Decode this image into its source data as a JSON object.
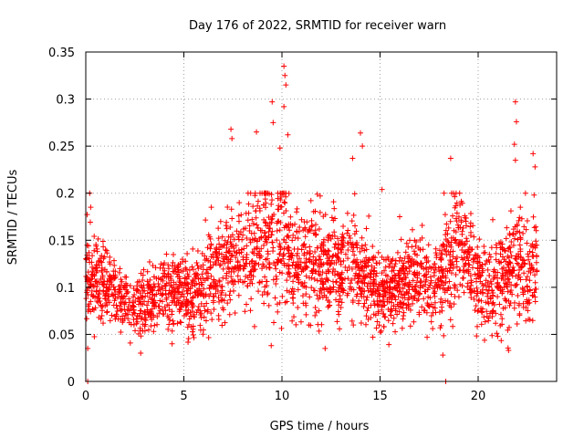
{
  "chart_data": {
    "type": "scatter",
    "title": "Day 176 of 2022, SRMTID for receiver warn",
    "xlabel": "GPS time / hours",
    "ylabel": "SRMTID / TECUs",
    "xlim": [
      0,
      24
    ],
    "ylim": [
      0,
      0.35
    ],
    "xticks": [
      0,
      5,
      10,
      15,
      20
    ],
    "xtick_labels": [
      "0",
      "5",
      "10",
      "15",
      "20"
    ],
    "yticks": [
      0,
      0.05,
      0.1,
      0.15,
      0.2,
      0.25,
      0.3,
      0.35
    ],
    "ytick_labels": [
      "0",
      "0.05",
      "0.1",
      "0.15",
      "0.2",
      "0.25",
      "0.3",
      "0.35"
    ],
    "grid": true,
    "marker": "+",
    "color": "#ff0000",
    "series": [
      {
        "name": "SRMTID",
        "profile_x": [
          0,
          0.5,
          1,
          1.5,
          2,
          2.5,
          3,
          3.5,
          4,
          4.5,
          5,
          5.5,
          6,
          6.5,
          7,
          7.5,
          8,
          8.5,
          9,
          9.5,
          10,
          10.5,
          11,
          11.5,
          12,
          12.5,
          13,
          13.5,
          14,
          14.5,
          15,
          15.5,
          16,
          16.5,
          17,
          17.5,
          18,
          18.5,
          19,
          19.5,
          20,
          20.5,
          21,
          21.5,
          22,
          22.5,
          23
        ],
        "profile_mean": [
          0.115,
          0.11,
          0.1,
          0.095,
          0.085,
          0.08,
          0.085,
          0.09,
          0.095,
          0.1,
          0.095,
          0.09,
          0.1,
          0.115,
          0.12,
          0.13,
          0.125,
          0.14,
          0.15,
          0.14,
          0.15,
          0.13,
          0.12,
          0.125,
          0.125,
          0.12,
          0.12,
          0.125,
          0.12,
          0.11,
          0.095,
          0.095,
          0.1,
          0.11,
          0.115,
          0.105,
          0.11,
          0.13,
          0.15,
          0.13,
          0.11,
          0.1,
          0.1,
          0.12,
          0.125,
          0.12,
          0.12
        ],
        "profile_spread": [
          0.03,
          0.03,
          0.025,
          0.02,
          0.02,
          0.02,
          0.02,
          0.025,
          0.025,
          0.025,
          0.025,
          0.025,
          0.03,
          0.03,
          0.035,
          0.035,
          0.035,
          0.04,
          0.045,
          0.04,
          0.045,
          0.04,
          0.035,
          0.035,
          0.035,
          0.035,
          0.035,
          0.035,
          0.035,
          0.03,
          0.025,
          0.025,
          0.025,
          0.03,
          0.03,
          0.03,
          0.035,
          0.04,
          0.04,
          0.035,
          0.03,
          0.03,
          0.03,
          0.035,
          0.035,
          0.035,
          0.035
        ],
        "point_count": 2600,
        "outliers": [
          {
            "x": 0.1,
            "y": 0.0
          },
          {
            "x": 0.2,
            "y": 0.2
          },
          {
            "x": 0.25,
            "y": 0.185
          },
          {
            "x": 0.1,
            "y": 0.035
          },
          {
            "x": 9.5,
            "y": 0.297
          },
          {
            "x": 9.55,
            "y": 0.275
          },
          {
            "x": 10.1,
            "y": 0.335
          },
          {
            "x": 10.15,
            "y": 0.325
          },
          {
            "x": 10.2,
            "y": 0.315
          },
          {
            "x": 10.1,
            "y": 0.292
          },
          {
            "x": 10.3,
            "y": 0.262
          },
          {
            "x": 9.9,
            "y": 0.248
          },
          {
            "x": 7.4,
            "y": 0.268
          },
          {
            "x": 7.45,
            "y": 0.258
          },
          {
            "x": 8.7,
            "y": 0.265
          },
          {
            "x": 14.0,
            "y": 0.264
          },
          {
            "x": 14.1,
            "y": 0.25
          },
          {
            "x": 13.6,
            "y": 0.237
          },
          {
            "x": 15.1,
            "y": 0.204
          },
          {
            "x": 18.6,
            "y": 0.237
          },
          {
            "x": 18.35,
            "y": 0.0
          },
          {
            "x": 18.2,
            "y": 0.028
          },
          {
            "x": 21.9,
            "y": 0.297
          },
          {
            "x": 21.95,
            "y": 0.276
          },
          {
            "x": 21.85,
            "y": 0.252
          },
          {
            "x": 21.9,
            "y": 0.235
          },
          {
            "x": 22.8,
            "y": 0.242
          },
          {
            "x": 22.9,
            "y": 0.228
          },
          {
            "x": 22.85,
            "y": 0.198
          },
          {
            "x": 2.8,
            "y": 0.03
          },
          {
            "x": 4.4,
            "y": 0.04
          },
          {
            "x": 12.2,
            "y": 0.035
          },
          {
            "x": 21.0,
            "y": 0.048
          },
          {
            "x": 21.55,
            "y": 0.033
          },
          {
            "x": 6.4,
            "y": 0.185
          },
          {
            "x": 16.0,
            "y": 0.175
          }
        ]
      }
    ]
  }
}
